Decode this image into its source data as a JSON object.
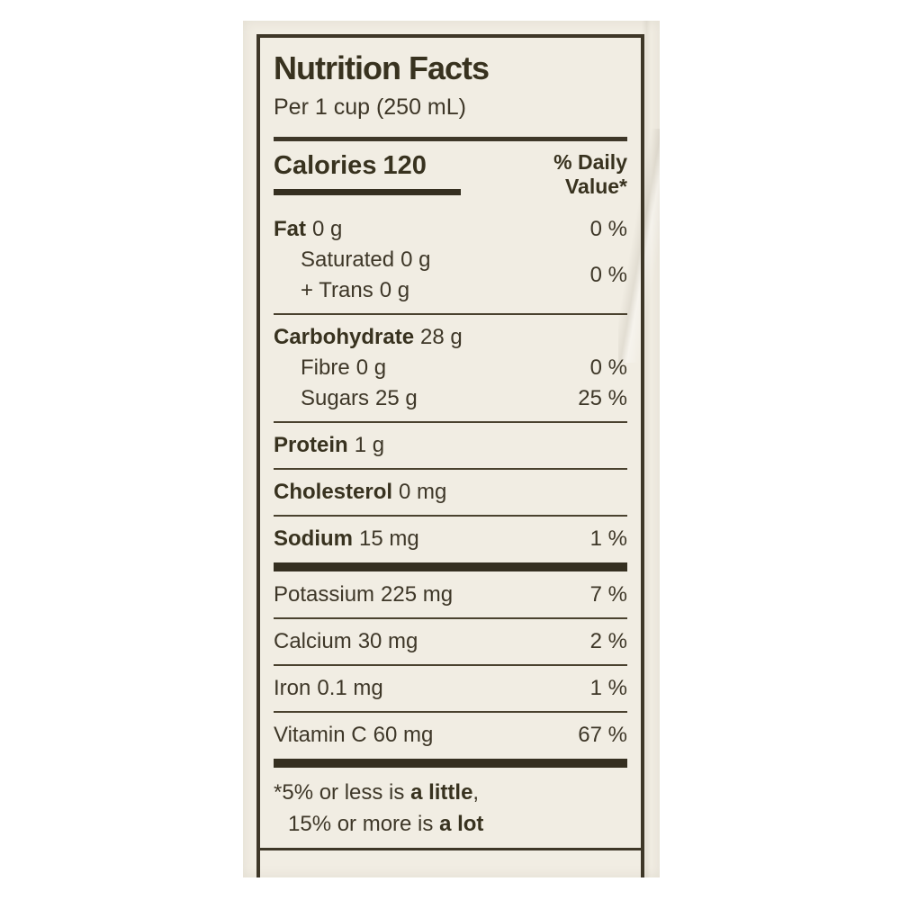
{
  "label": {
    "title": "Nutrition Facts",
    "serving": "Per 1 cup (250 mL)",
    "calories": {
      "label": "Calories",
      "value": "120"
    },
    "daily_value_header": {
      "line1": "% Daily",
      "line2": "Value*"
    },
    "nutrients": {
      "fat": {
        "name": "Fat",
        "amount": "0 g",
        "dv": "0 %"
      },
      "saturated": {
        "name": "Saturated",
        "amount": "0 g"
      },
      "trans": {
        "name": "+ Trans",
        "amount": "0 g"
      },
      "sat_trans_dv": "0 %",
      "carbohydrate": {
        "name": "Carbohydrate",
        "amount": "28 g"
      },
      "fibre": {
        "name": "Fibre",
        "amount": "0 g",
        "dv": "0 %"
      },
      "sugars": {
        "name": "Sugars",
        "amount": "25 g",
        "dv": "25 %"
      },
      "protein": {
        "name": "Protein",
        "amount": "1 g"
      },
      "cholesterol": {
        "name": "Cholesterol",
        "amount": "0 mg"
      },
      "sodium": {
        "name": "Sodium",
        "amount": "15 mg",
        "dv": "1 %"
      },
      "potassium": {
        "name": "Potassium",
        "amount": "225 mg",
        "dv": "7 %"
      },
      "calcium": {
        "name": "Calcium",
        "amount": "30 mg",
        "dv": "2 %"
      },
      "iron": {
        "name": "Iron",
        "amount": "0.1 mg",
        "dv": "1 %"
      },
      "vitamin_c": {
        "name": "Vitamin C",
        "amount": "60 mg",
        "dv": "67 %"
      }
    },
    "footnote": {
      "line1_prefix": "*5% or less is ",
      "line1_bold": "a little",
      "line1_suffix": ",",
      "line2_prefix": "15% or more is ",
      "line2_bold": "a lot"
    },
    "colors": {
      "paper": "#f1ede3",
      "ink": "#3e3728"
    }
  }
}
